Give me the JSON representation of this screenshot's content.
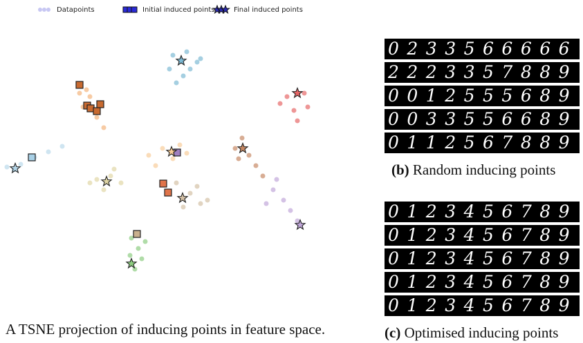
{
  "chart_data": {
    "type": "scatter",
    "caption": "A TSNE projection of inducing points in feature space.",
    "xlim": [
      0,
      530
    ],
    "ylim": [
      0,
      420
    ],
    "series": [
      {
        "name": "Datapoints",
        "color": "#8f8fe8",
        "marker": "circle",
        "x": [
          250,
          270,
          285,
          245,
          265,
          275,
          255,
          290,
          415,
          440,
          425,
          445,
          405,
          430,
          115,
          130,
          120,
          140,
          150,
          125,
          10,
          30,
          50,
          70,
          90,
          20,
          215,
          235,
          250,
          270,
          225,
          260,
          140,
          160,
          175,
          150,
          130,
          165,
          340,
          360,
          370,
          350,
          380,
          345,
          255,
          275,
          290,
          265,
          285,
          300,
          395,
          410,
          420,
          400,
          430,
          385,
          190,
          200,
          188,
          205,
          195,
          210
        ],
        "y": [
          370,
          375,
          360,
          350,
          340,
          350,
          330,
          365,
          310,
          315,
          290,
          295,
          300,
          275,
          315,
          310,
          295,
          280,
          265,
          320,
          208,
          212,
          222,
          230,
          238,
          204,
          225,
          235,
          220,
          228,
          210,
          240,
          190,
          195,
          185,
          175,
          185,
          205,
          235,
          225,
          210,
          250,
          195,
          220,
          185,
          170,
          155,
          150,
          180,
          160,
          175,
          160,
          145,
          190,
          130,
          155,
          105,
          90,
          80,
          75,
          60,
          100
        ],
        "colors": [
          "#5ba8c9",
          "#5ba8c9",
          "#5ba8c9",
          "#5ba8c9",
          "#5ba8c9",
          "#5ba8c9",
          "#5ba8c9",
          "#5ba8c9",
          "#e04040",
          "#e04040",
          "#e04040",
          "#e04040",
          "#e04040",
          "#e04040",
          "#f0a05a",
          "#f0a05a",
          "#f0a05a",
          "#f0a05a",
          "#f0a05a",
          "#f0a05a",
          "#a8d0e6",
          "#a8d0e6",
          "#a8d0e6",
          "#a8d0e6",
          "#a8d0e6",
          "#a8d0e6",
          "#f6c080",
          "#f6c080",
          "#f6c080",
          "#f6c080",
          "#f6c080",
          "#f6c080",
          "#d8cc8e",
          "#d8cc8e",
          "#d8cc8e",
          "#d8cc8e",
          "#d8cc8e",
          "#d8cc8e",
          "#b86a3c",
          "#b86a3c",
          "#b86a3c",
          "#b86a3c",
          "#b86a3c",
          "#b86a3c",
          "#c9b08e",
          "#c9b08e",
          "#c9b08e",
          "#c9b08e",
          "#c9b08e",
          "#c9b08e",
          "#b090d0",
          "#b090d0",
          "#b090d0",
          "#b090d0",
          "#b090d0",
          "#b090d0",
          "#70c060",
          "#70c060",
          "#70c060",
          "#70c060",
          "#70c060",
          "#70c060"
        ]
      },
      {
        "name": "Initial induced points",
        "color": "#2a2ad8",
        "marker": "square",
        "x": [
          115,
          126,
          131,
          140,
          145,
          46,
          256,
          236,
          243,
          198
        ],
        "y": [
          327,
          297,
          293,
          289,
          299,
          222,
          229,
          184,
          171,
          111
        ],
        "colors": [
          "#c86a30",
          "#c86a30",
          "#c86a30",
          "#c86a30",
          "#c86a30",
          "#a8d0e6",
          "#a080c0",
          "#e0744a",
          "#e0744a",
          "#c9b08e"
        ]
      },
      {
        "name": "Final induced points",
        "color": "#2a2ab0",
        "marker": "star",
        "x": [
          262,
          430,
          22,
          248,
          154,
          351,
          264,
          434,
          190
        ],
        "y": [
          362,
          315,
          206,
          230,
          187,
          235,
          163,
          124,
          68
        ],
        "colors": [
          "#5ba8c9",
          "#e04040",
          "#a8d0e6",
          "#f6c080",
          "#d8cc8e",
          "#b86a3c",
          "#c9b08e",
          "#b090d0",
          "#70c060"
        ]
      }
    ]
  },
  "panel_b": {
    "label": "(b)",
    "caption": "Random inducing points",
    "rows": [
      "0233566666",
      "2223357889",
      "0012555689",
      "0033556689",
      "0112567889"
    ]
  },
  "panel_c": {
    "label": "(c)",
    "caption": "Optimised inducing points",
    "rows": [
      "0123456789",
      "0123456789",
      "0123456789",
      "0123456789",
      "0123456789"
    ]
  }
}
